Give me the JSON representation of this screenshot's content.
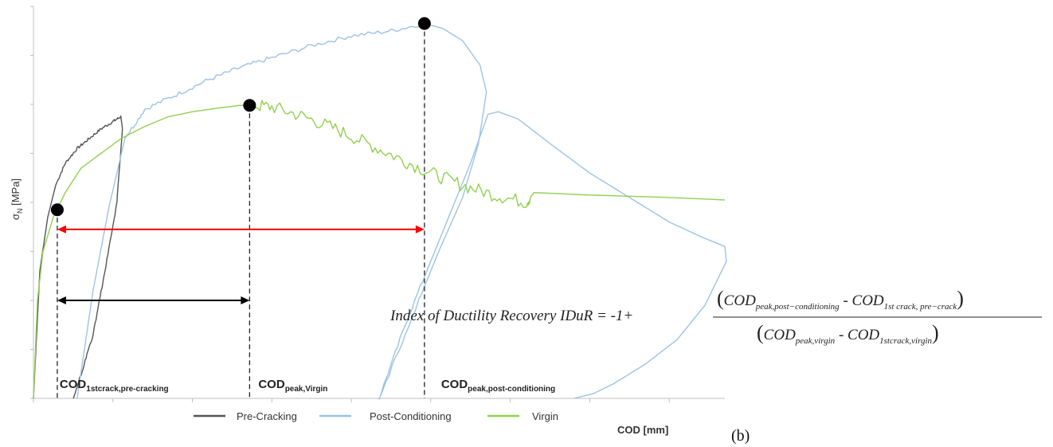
{
  "chart_data": {
    "type": "line",
    "title": "",
    "xlabel": "COD [mm]",
    "ylabel_main": "σ",
    "ylabel_sub": "N",
    "ylabel_unit": "[MPa]",
    "xlim": [
      0,
      8.7
    ],
    "ylim": [
      0,
      8
    ],
    "x_ticks": [
      0,
      1,
      2,
      3,
      4,
      5,
      6,
      7,
      8
    ],
    "y_ticks": [
      0,
      1,
      2,
      3,
      4,
      5,
      6,
      7,
      8
    ],
    "grid": false,
    "legend_position": "bottom",
    "series": [
      {
        "name": "Pre-Cracking",
        "color": "#555555",
        "x": [
          0,
          0.08,
          0.18,
          0.28,
          0.4,
          0.55,
          0.7,
          0.85,
          1.0,
          1.1,
          1.12,
          1.05,
          0.9,
          0.75,
          0.6,
          0.5
        ],
        "y": [
          0,
          2.6,
          3.7,
          4.35,
          4.8,
          5.1,
          5.3,
          5.5,
          5.65,
          5.75,
          5.5,
          4.0,
          2.6,
          1.3,
          0.5,
          0
        ]
      },
      {
        "name": "Post-Conditioning",
        "color": "#9DC3E6",
        "x": [
          0.55,
          0.75,
          0.95,
          1.15,
          1.4,
          1.8,
          2.2,
          2.6,
          3.0,
          3.5,
          4.0,
          4.5,
          4.92,
          5.15,
          5.4,
          5.62,
          5.7,
          5.6,
          5.4,
          5.1,
          4.85,
          4.35,
          4.7,
          5.1,
          5.5,
          5.72,
          5.85,
          6.1,
          6.5,
          7.0,
          7.5,
          8.0,
          8.4,
          8.7,
          8.72,
          8.45,
          8.1,
          7.7,
          7.3,
          7.05,
          6.8
        ],
        "y": [
          0,
          2.2,
          3.9,
          5.3,
          5.9,
          6.2,
          6.5,
          6.75,
          6.95,
          7.2,
          7.4,
          7.5,
          7.65,
          7.55,
          7.3,
          6.8,
          6.25,
          5.2,
          4.1,
          3.0,
          2.0,
          0,
          1.6,
          3.2,
          4.8,
          5.8,
          5.85,
          5.7,
          5.2,
          4.6,
          4.1,
          3.6,
          3.3,
          3.1,
          2.8,
          1.9,
          1.2,
          0.7,
          0.3,
          0.1,
          0
        ]
      },
      {
        "name": "Virgin",
        "color": "#92D050",
        "x": [
          0,
          0.05,
          0.12,
          0.25,
          0.4,
          0.6,
          0.85,
          1.1,
          1.4,
          1.7,
          2.0,
          2.3,
          2.6,
          2.7,
          3.0,
          3.4,
          3.8,
          4.2,
          4.6,
          5.0,
          5.4,
          5.8,
          6.2,
          6.3,
          7.0,
          8.0,
          8.7
        ],
        "y": [
          0,
          2.0,
          3.0,
          3.7,
          4.2,
          4.7,
          5.0,
          5.3,
          5.55,
          5.75,
          5.85,
          5.92,
          5.98,
          5.98,
          5.95,
          5.75,
          5.5,
          5.2,
          4.9,
          4.6,
          4.35,
          4.15,
          4.0,
          4.2,
          4.15,
          4.1,
          4.05
        ]
      }
    ],
    "points": [
      {
        "name": "1st crack, pre-cracking",
        "x": 0.3,
        "y": 3.85
      },
      {
        "name": "peak, virgin",
        "x": 2.72,
        "y": 5.98
      },
      {
        "name": "peak, post-conditioning",
        "x": 4.92,
        "y": 7.65
      }
    ],
    "arrows": [
      {
        "name": "virgin span",
        "from_x": 0.3,
        "to_x": 2.72,
        "y": 2.0,
        "color": "#000000"
      },
      {
        "name": "post-conditioning span",
        "from_x": 0.3,
        "to_x": 4.92,
        "y": 3.45,
        "color": "#FF0000"
      }
    ],
    "annotations": [
      {
        "main": "COD",
        "sub": "1stcrack,pre-cracking",
        "x": 0.3
      },
      {
        "main": "COD",
        "sub": "peak,Virgin",
        "x": 2.8
      },
      {
        "main": "COD",
        "sub": "peak,post-conditioning",
        "x": 5.1
      }
    ],
    "formula": {
      "lhs": "Index of Ductility Recovery IDuR = -1+",
      "num_a": "COD",
      "num_a_sub": "peak,post−conditioning",
      "num_op": " - ",
      "num_b": "COD",
      "num_b_sub": "1st crack, pre−crack",
      "den_a": "COD",
      "den_a_sub": "peak,virgin",
      "den_op": " - ",
      "den_b": "COD",
      "den_b_sub": "1stcrack,virgin"
    },
    "panel_label": "(b)"
  }
}
